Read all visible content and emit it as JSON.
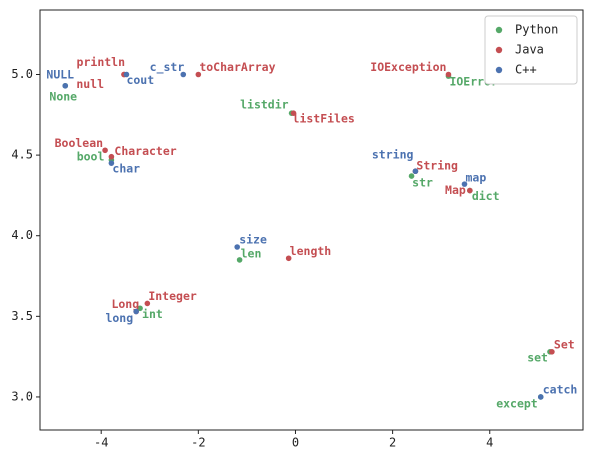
{
  "chart_data": {
    "type": "scatter",
    "xlim": [
      -5.26,
      5.92
    ],
    "ylim": [
      2.795,
      5.4
    ],
    "xticks": [
      -4,
      -2,
      0,
      2,
      4
    ],
    "yticks": [
      {
        "value": 3.0,
        "label": "3.0"
      },
      {
        "value": 3.5,
        "label": "3.5"
      },
      {
        "value": 4.0,
        "label": "4.0"
      },
      {
        "value": 4.5,
        "label": "4.5"
      },
      {
        "value": 5.0,
        "label": "5.0"
      }
    ],
    "legend": "upper right",
    "series": [
      {
        "name": "Python",
        "color": "#55a868",
        "labels": [
          "None",
          "bool",
          "str",
          "dict",
          "len",
          "int",
          "set",
          "except",
          "listdir",
          "IOError"
        ],
        "x": [
          -4.74,
          -3.79,
          2.39,
          3.59,
          -1.15,
          -3.2,
          5.24,
          5.05,
          -0.08,
          3.15
        ],
        "y": [
          4.93,
          4.47,
          4.37,
          4.28,
          3.85,
          3.55,
          3.28,
          3.0,
          4.76,
          4.99
        ]
      },
      {
        "name": "Java",
        "color": "#c44e52",
        "labels": [
          "println",
          "null",
          "toCharArray",
          "IOException",
          "listFiles",
          "Boolean",
          "Character",
          "String",
          "Map",
          "length",
          "Integer",
          "Long",
          "Set"
        ],
        "x": [
          -3.53,
          -3.53,
          -2.0,
          3.15,
          -0.04,
          -3.92,
          -3.79,
          2.47,
          3.59,
          -0.14,
          -3.05,
          -3.28,
          5.28
        ],
        "y": [
          5.0,
          5.0,
          5.0,
          5.0,
          4.76,
          4.53,
          4.49,
          4.4,
          4.28,
          3.86,
          3.58,
          3.53,
          3.28
        ]
      },
      {
        "name": "C++",
        "color": "#4c72b0",
        "labels": [
          "NULL",
          "cout",
          "c_str",
          "char",
          "string",
          "map",
          "size",
          "long",
          "catch"
        ],
        "x": [
          -4.74,
          -3.48,
          -2.31,
          -3.79,
          2.47,
          3.48,
          -1.2,
          -3.28,
          5.05
        ],
        "y": [
          4.93,
          5.0,
          5.0,
          4.45,
          4.4,
          4.32,
          3.93,
          3.53,
          3.0
        ]
      }
    ]
  }
}
